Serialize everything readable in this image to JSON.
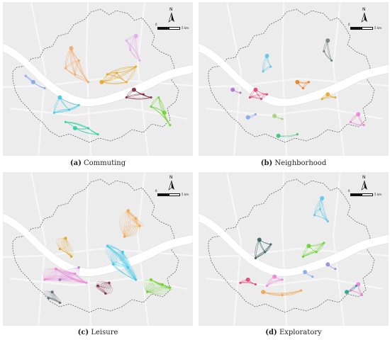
{
  "colors": {
    "background": "#ececec",
    "river": "#ffffff",
    "boundary": "#555555",
    "road": "#f7f7f7"
  },
  "north_label": "N",
  "scale": {
    "zero": "0",
    "distance": "5 km"
  },
  "panels": [
    {
      "id": "a",
      "letter": "(a)",
      "title": "Commuting",
      "clusters": [
        {
          "color": "#e3a9e8",
          "nodes": [
            [
              0.7,
              0.22
            ],
            [
              0.67,
              0.31
            ],
            [
              0.72,
              0.38
            ],
            [
              0.65,
              0.25
            ]
          ]
        },
        {
          "color": "#f2a86a",
          "nodes": [
            [
              0.36,
              0.3
            ],
            [
              0.4,
              0.38
            ],
            [
              0.33,
              0.43
            ],
            [
              0.45,
              0.52
            ],
            [
              0.38,
              0.47
            ]
          ]
        },
        {
          "color": "#e5a52a",
          "nodes": [
            [
              0.52,
              0.52
            ],
            [
              0.6,
              0.46
            ],
            [
              0.65,
              0.52
            ],
            [
              0.7,
              0.42
            ],
            [
              0.55,
              0.47
            ]
          ]
        },
        {
          "color": "#7fa8f0",
          "nodes": [
            [
              0.16,
              0.52
            ],
            [
              0.12,
              0.48
            ],
            [
              0.22,
              0.56
            ]
          ]
        },
        {
          "color": "#3ec7e6",
          "nodes": [
            [
              0.3,
              0.62
            ],
            [
              0.35,
              0.7
            ],
            [
              0.27,
              0.72
            ],
            [
              0.4,
              0.67
            ]
          ]
        },
        {
          "color": "#7a2a45",
          "nodes": [
            [
              0.69,
              0.57
            ],
            [
              0.74,
              0.6
            ],
            [
              0.65,
              0.62
            ],
            [
              0.78,
              0.62
            ]
          ]
        },
        {
          "color": "#6bd12c",
          "nodes": [
            [
              0.85,
              0.72
            ],
            [
              0.82,
              0.62
            ],
            [
              0.88,
              0.8
            ],
            [
              0.78,
              0.68
            ]
          ]
        },
        {
          "color": "#2ecfa0",
          "nodes": [
            [
              0.38,
              0.82
            ],
            [
              0.45,
              0.82
            ],
            [
              0.5,
              0.86
            ],
            [
              0.33,
              0.78
            ]
          ]
        }
      ]
    },
    {
      "id": "b",
      "letter": "(b)",
      "title": "Neighborhood",
      "clusters": [
        {
          "color": "#6e7f82",
          "nodes": [
            [
              0.68,
              0.25
            ],
            [
              0.66,
              0.32
            ],
            [
              0.7,
              0.38
            ]
          ]
        },
        {
          "color": "#5cc6e8",
          "nodes": [
            [
              0.36,
              0.35
            ],
            [
              0.38,
              0.42
            ],
            [
              0.34,
              0.45
            ]
          ]
        },
        {
          "color": "#f07c1e",
          "nodes": [
            [
              0.52,
              0.52
            ],
            [
              0.58,
              0.52
            ],
            [
              0.55,
              0.56
            ]
          ]
        },
        {
          "color": "#e33e72",
          "nodes": [
            [
              0.3,
              0.57
            ],
            [
              0.36,
              0.6
            ],
            [
              0.33,
              0.63
            ],
            [
              0.27,
              0.62
            ]
          ]
        },
        {
          "color": "#e5a52a",
          "nodes": [
            [
              0.68,
              0.6
            ],
            [
              0.72,
              0.62
            ],
            [
              0.65,
              0.63
            ]
          ]
        },
        {
          "color": "#b36fd1",
          "nodes": [
            [
              0.18,
              0.57
            ],
            [
              0.22,
              0.59
            ]
          ]
        },
        {
          "color": "#7fa8f0",
          "nodes": [
            [
              0.26,
              0.75
            ],
            [
              0.3,
              0.73
            ]
          ]
        },
        {
          "color": "#9fd16a",
          "nodes": [
            [
              0.4,
              0.74
            ],
            [
              0.44,
              0.76
            ]
          ]
        },
        {
          "color": "#ef7fd8",
          "nodes": [
            [
              0.84,
              0.73
            ],
            [
              0.8,
              0.78
            ],
            [
              0.87,
              0.8
            ]
          ]
        },
        {
          "color": "#3ac27a",
          "nodes": [
            [
              0.42,
              0.87
            ],
            [
              0.52,
              0.86
            ]
          ]
        }
      ]
    },
    {
      "id": "c",
      "letter": "(c)",
      "title": "Leisure",
      "clusters": [
        {
          "color": "#f0a24a",
          "nodes": [
            [
              0.66,
              0.25
            ],
            [
              0.72,
              0.35
            ],
            [
              0.64,
              0.42
            ],
            [
              0.7,
              0.3
            ]
          ]
        },
        {
          "color": "#e2a021",
          "nodes": [
            [
              0.33,
              0.43
            ],
            [
              0.36,
              0.55
            ],
            [
              0.3,
              0.5
            ]
          ]
        },
        {
          "color": "#3ec7e6",
          "nodes": [
            [
              0.63,
              0.52
            ],
            [
              0.66,
              0.62
            ],
            [
              0.58,
              0.6
            ],
            [
              0.7,
              0.7
            ],
            [
              0.55,
              0.48
            ]
          ]
        },
        {
          "color": "#ef7fd8",
          "nodes": [
            [
              0.28,
              0.63
            ],
            [
              0.38,
              0.66
            ],
            [
              0.44,
              0.72
            ],
            [
              0.22,
              0.7
            ]
          ]
        },
        {
          "color": "#b36fd1",
          "nodes": [
            [
              0.3,
              0.7
            ],
            [
              0.4,
              0.62
            ]
          ]
        },
        {
          "color": "#7a2a45",
          "nodes": [
            [
              0.5,
              0.74
            ],
            [
              0.56,
              0.72
            ],
            [
              0.54,
              0.79
            ]
          ]
        },
        {
          "color": "#6bd12c",
          "nodes": [
            [
              0.78,
              0.7
            ],
            [
              0.84,
              0.73
            ],
            [
              0.76,
              0.78
            ],
            [
              0.88,
              0.75
            ]
          ]
        },
        {
          "color": "#596a73",
          "nodes": [
            [
              0.26,
              0.78
            ],
            [
              0.3,
              0.85
            ],
            [
              0.24,
              0.82
            ]
          ]
        }
      ]
    },
    {
      "id": "d",
      "letter": "(d)",
      "title": "Exploratory",
      "clusters": [
        {
          "color": "#5cc6e8",
          "nodes": [
            [
              0.65,
              0.17
            ],
            [
              0.64,
              0.24
            ],
            [
              0.68,
              0.32
            ],
            [
              0.61,
              0.28
            ]
          ]
        },
        {
          "color": "#6bd12c",
          "nodes": [
            [
              0.58,
              0.48
            ],
            [
              0.62,
              0.52
            ],
            [
              0.55,
              0.55
            ],
            [
              0.66,
              0.46
            ]
          ]
        },
        {
          "color": "#375e5a",
          "nodes": [
            [
              0.32,
              0.44
            ],
            [
              0.35,
              0.52
            ],
            [
              0.3,
              0.56
            ],
            [
              0.38,
              0.47
            ]
          ]
        },
        {
          "color": "#e33e72",
          "nodes": [
            [
              0.26,
              0.7
            ],
            [
              0.3,
              0.73
            ],
            [
              0.22,
              0.72
            ]
          ]
        },
        {
          "color": "#ef7fd8",
          "nodes": [
            [
              0.4,
              0.68
            ],
            [
              0.44,
              0.7
            ],
            [
              0.36,
              0.74
            ]
          ]
        },
        {
          "color": "#7fa8f0",
          "nodes": [
            [
              0.56,
              0.65
            ],
            [
              0.6,
              0.68
            ]
          ]
        },
        {
          "color": "#f0a24a",
          "nodes": [
            [
              0.34,
              0.78
            ],
            [
              0.44,
              0.8
            ],
            [
              0.54,
              0.77
            ]
          ]
        },
        {
          "color": "#8e8fd8",
          "nodes": [
            [
              0.68,
              0.6
            ],
            [
              0.72,
              0.63
            ]
          ]
        },
        {
          "color": "#ef7fd8",
          "nodes": [
            [
              0.84,
              0.73
            ],
            [
              0.86,
              0.8
            ],
            [
              0.8,
              0.77
            ]
          ]
        },
        {
          "color": "#1fa38a",
          "nodes": [
            [
              0.78,
              0.78
            ],
            [
              0.83,
              0.74
            ]
          ]
        }
      ]
    }
  ]
}
